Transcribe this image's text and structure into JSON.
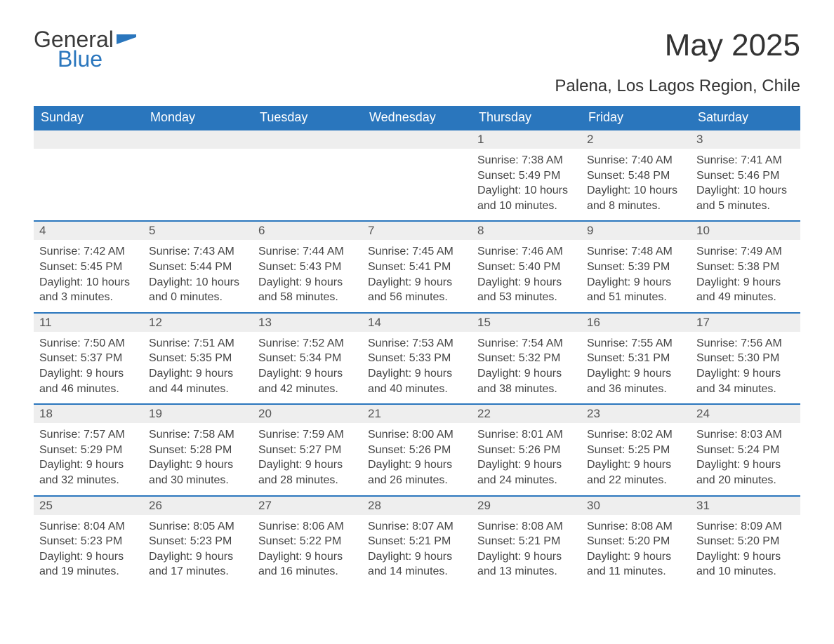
{
  "logo": {
    "text_general": "General",
    "text_blue": "Blue",
    "flag_color": "#2a76bd",
    "general_color": "#3a3a3a"
  },
  "header": {
    "title": "May 2025",
    "subtitle": "Palena, Los Lagos Region, Chile"
  },
  "colors": {
    "header_bg": "#2a76bd",
    "header_text": "#ffffff",
    "daynum_bg": "#eeeeee",
    "border": "#2a76bd",
    "body_text": "#444444",
    "title_text": "#333333"
  },
  "fonts": {
    "title_size_pt": 33,
    "subtitle_size_pt": 18,
    "header_size_pt": 13,
    "daynum_size_pt": 13,
    "body_size_pt": 12
  },
  "weekdays": [
    "Sunday",
    "Monday",
    "Tuesday",
    "Wednesday",
    "Thursday",
    "Friday",
    "Saturday"
  ],
  "weeks": [
    [
      {
        "day": "",
        "sunrise": "",
        "sunset": "",
        "daylight": ""
      },
      {
        "day": "",
        "sunrise": "",
        "sunset": "",
        "daylight": ""
      },
      {
        "day": "",
        "sunrise": "",
        "sunset": "",
        "daylight": ""
      },
      {
        "day": "",
        "sunrise": "",
        "sunset": "",
        "daylight": ""
      },
      {
        "day": "1",
        "sunrise": "Sunrise: 7:38 AM",
        "sunset": "Sunset: 5:49 PM",
        "daylight": "Daylight: 10 hours and 10 minutes."
      },
      {
        "day": "2",
        "sunrise": "Sunrise: 7:40 AM",
        "sunset": "Sunset: 5:48 PM",
        "daylight": "Daylight: 10 hours and 8 minutes."
      },
      {
        "day": "3",
        "sunrise": "Sunrise: 7:41 AM",
        "sunset": "Sunset: 5:46 PM",
        "daylight": "Daylight: 10 hours and 5 minutes."
      }
    ],
    [
      {
        "day": "4",
        "sunrise": "Sunrise: 7:42 AM",
        "sunset": "Sunset: 5:45 PM",
        "daylight": "Daylight: 10 hours and 3 minutes."
      },
      {
        "day": "5",
        "sunrise": "Sunrise: 7:43 AM",
        "sunset": "Sunset: 5:44 PM",
        "daylight": "Daylight: 10 hours and 0 minutes."
      },
      {
        "day": "6",
        "sunrise": "Sunrise: 7:44 AM",
        "sunset": "Sunset: 5:43 PM",
        "daylight": "Daylight: 9 hours and 58 minutes."
      },
      {
        "day": "7",
        "sunrise": "Sunrise: 7:45 AM",
        "sunset": "Sunset: 5:41 PM",
        "daylight": "Daylight: 9 hours and 56 minutes."
      },
      {
        "day": "8",
        "sunrise": "Sunrise: 7:46 AM",
        "sunset": "Sunset: 5:40 PM",
        "daylight": "Daylight: 9 hours and 53 minutes."
      },
      {
        "day": "9",
        "sunrise": "Sunrise: 7:48 AM",
        "sunset": "Sunset: 5:39 PM",
        "daylight": "Daylight: 9 hours and 51 minutes."
      },
      {
        "day": "10",
        "sunrise": "Sunrise: 7:49 AM",
        "sunset": "Sunset: 5:38 PM",
        "daylight": "Daylight: 9 hours and 49 minutes."
      }
    ],
    [
      {
        "day": "11",
        "sunrise": "Sunrise: 7:50 AM",
        "sunset": "Sunset: 5:37 PM",
        "daylight": "Daylight: 9 hours and 46 minutes."
      },
      {
        "day": "12",
        "sunrise": "Sunrise: 7:51 AM",
        "sunset": "Sunset: 5:35 PM",
        "daylight": "Daylight: 9 hours and 44 minutes."
      },
      {
        "day": "13",
        "sunrise": "Sunrise: 7:52 AM",
        "sunset": "Sunset: 5:34 PM",
        "daylight": "Daylight: 9 hours and 42 minutes."
      },
      {
        "day": "14",
        "sunrise": "Sunrise: 7:53 AM",
        "sunset": "Sunset: 5:33 PM",
        "daylight": "Daylight: 9 hours and 40 minutes."
      },
      {
        "day": "15",
        "sunrise": "Sunrise: 7:54 AM",
        "sunset": "Sunset: 5:32 PM",
        "daylight": "Daylight: 9 hours and 38 minutes."
      },
      {
        "day": "16",
        "sunrise": "Sunrise: 7:55 AM",
        "sunset": "Sunset: 5:31 PM",
        "daylight": "Daylight: 9 hours and 36 minutes."
      },
      {
        "day": "17",
        "sunrise": "Sunrise: 7:56 AM",
        "sunset": "Sunset: 5:30 PM",
        "daylight": "Daylight: 9 hours and 34 minutes."
      }
    ],
    [
      {
        "day": "18",
        "sunrise": "Sunrise: 7:57 AM",
        "sunset": "Sunset: 5:29 PM",
        "daylight": "Daylight: 9 hours and 32 minutes."
      },
      {
        "day": "19",
        "sunrise": "Sunrise: 7:58 AM",
        "sunset": "Sunset: 5:28 PM",
        "daylight": "Daylight: 9 hours and 30 minutes."
      },
      {
        "day": "20",
        "sunrise": "Sunrise: 7:59 AM",
        "sunset": "Sunset: 5:27 PM",
        "daylight": "Daylight: 9 hours and 28 minutes."
      },
      {
        "day": "21",
        "sunrise": "Sunrise: 8:00 AM",
        "sunset": "Sunset: 5:26 PM",
        "daylight": "Daylight: 9 hours and 26 minutes."
      },
      {
        "day": "22",
        "sunrise": "Sunrise: 8:01 AM",
        "sunset": "Sunset: 5:26 PM",
        "daylight": "Daylight: 9 hours and 24 minutes."
      },
      {
        "day": "23",
        "sunrise": "Sunrise: 8:02 AM",
        "sunset": "Sunset: 5:25 PM",
        "daylight": "Daylight: 9 hours and 22 minutes."
      },
      {
        "day": "24",
        "sunrise": "Sunrise: 8:03 AM",
        "sunset": "Sunset: 5:24 PM",
        "daylight": "Daylight: 9 hours and 20 minutes."
      }
    ],
    [
      {
        "day": "25",
        "sunrise": "Sunrise: 8:04 AM",
        "sunset": "Sunset: 5:23 PM",
        "daylight": "Daylight: 9 hours and 19 minutes."
      },
      {
        "day": "26",
        "sunrise": "Sunrise: 8:05 AM",
        "sunset": "Sunset: 5:23 PM",
        "daylight": "Daylight: 9 hours and 17 minutes."
      },
      {
        "day": "27",
        "sunrise": "Sunrise: 8:06 AM",
        "sunset": "Sunset: 5:22 PM",
        "daylight": "Daylight: 9 hours and 16 minutes."
      },
      {
        "day": "28",
        "sunrise": "Sunrise: 8:07 AM",
        "sunset": "Sunset: 5:21 PM",
        "daylight": "Daylight: 9 hours and 14 minutes."
      },
      {
        "day": "29",
        "sunrise": "Sunrise: 8:08 AM",
        "sunset": "Sunset: 5:21 PM",
        "daylight": "Daylight: 9 hours and 13 minutes."
      },
      {
        "day": "30",
        "sunrise": "Sunrise: 8:08 AM",
        "sunset": "Sunset: 5:20 PM",
        "daylight": "Daylight: 9 hours and 11 minutes."
      },
      {
        "day": "31",
        "sunrise": "Sunrise: 8:09 AM",
        "sunset": "Sunset: 5:20 PM",
        "daylight": "Daylight: 9 hours and 10 minutes."
      }
    ]
  ]
}
